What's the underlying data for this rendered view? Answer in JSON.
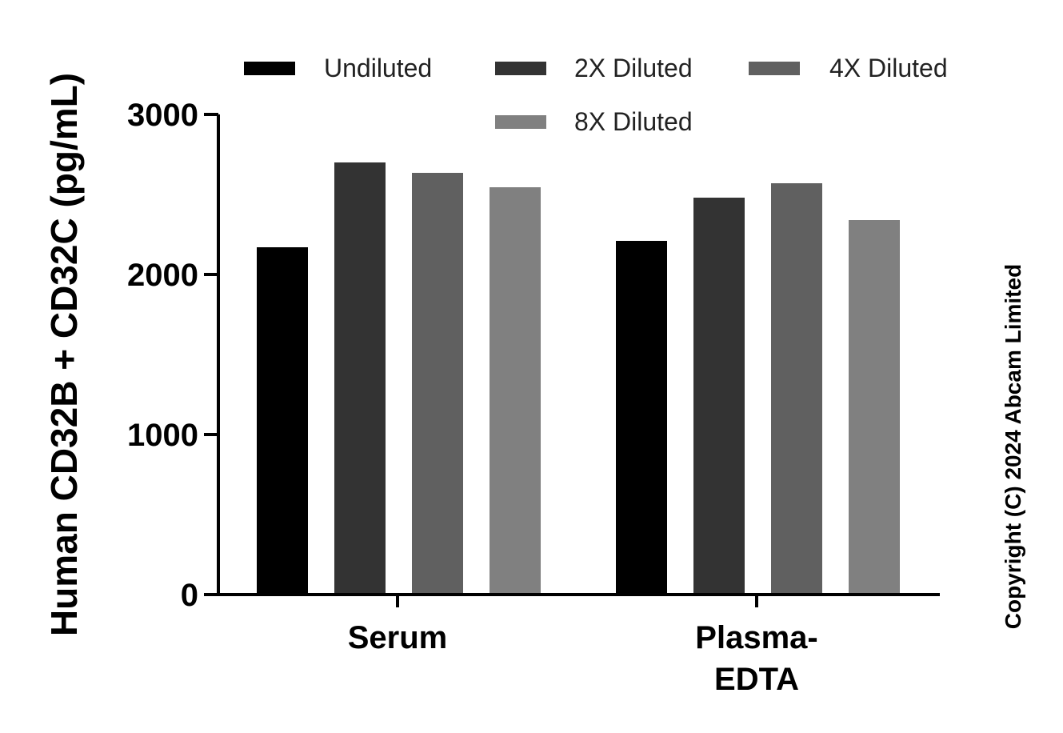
{
  "chart_data": {
    "type": "bar",
    "categories": [
      "Serum",
      "Plasma-EDTA"
    ],
    "category_lines": [
      [
        "Serum"
      ],
      [
        "Plasma-",
        "EDTA"
      ]
    ],
    "series": [
      {
        "name": "Undiluted",
        "color": "#000000",
        "values": [
          2170,
          2210
        ]
      },
      {
        "name": "2X Diluted",
        "color": "#333333",
        "values": [
          2700,
          2480
        ]
      },
      {
        "name": "4X Diluted",
        "color": "#606060",
        "values": [
          2635,
          2570
        ]
      },
      {
        "name": "8X Diluted",
        "color": "#808080",
        "values": [
          2545,
          2340
        ]
      }
    ],
    "ylabel": "Human CD32B + CD32C (pg/mL)",
    "xlabel": "",
    "ylim": [
      0,
      3000
    ],
    "yticks": [
      0,
      1000,
      2000,
      3000
    ],
    "grid": false,
    "legend_position": "top"
  },
  "copyright": "Copyright (C) 2024 Abcam Limited"
}
